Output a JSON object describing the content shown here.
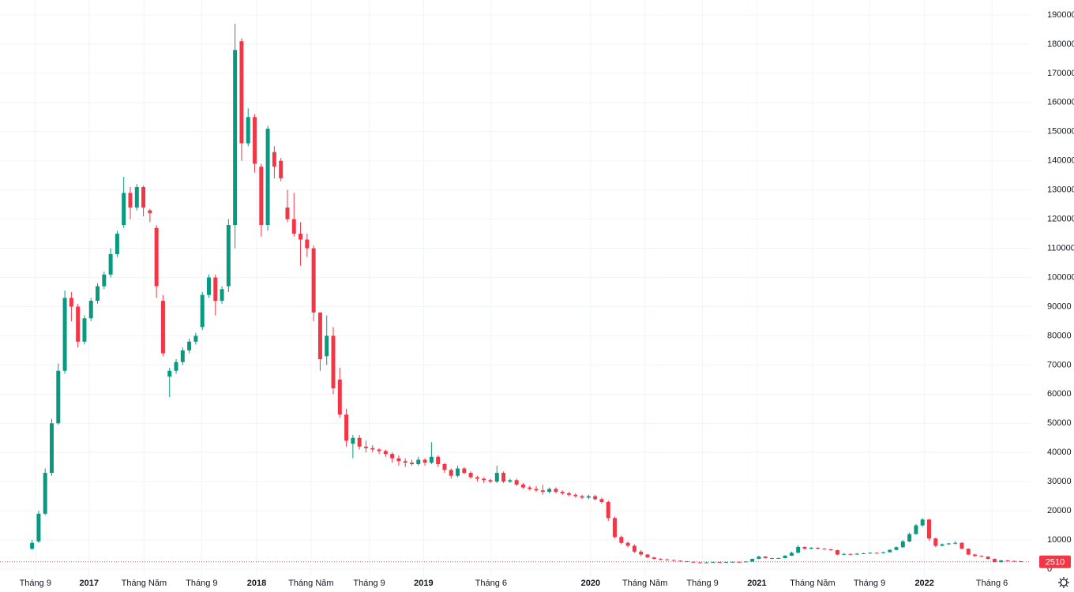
{
  "chart_data": {
    "type": "candlestick",
    "up_color": "#089981",
    "down_color": "#f23645",
    "grid": true,
    "ylim": [
      0,
      190000
    ],
    "yticks": [
      0,
      10000,
      20000,
      30000,
      40000,
      50000,
      60000,
      70000,
      80000,
      90000,
      100000,
      110000,
      120000,
      130000,
      140000,
      150000,
      160000,
      170000,
      180000,
      190000
    ],
    "xlim": [
      -4.9,
      152.5
    ],
    "xticks": [
      {
        "value": 0.5,
        "label": "Tháng 9"
      },
      {
        "value": 8.7,
        "label": "2017"
      },
      {
        "value": 17.1,
        "label": "Tháng Năm"
      },
      {
        "value": 25.9,
        "label": "Tháng 9"
      },
      {
        "value": 34.3,
        "label": "2018"
      },
      {
        "value": 42.6,
        "label": "Tháng Năm"
      },
      {
        "value": 51.5,
        "label": "Tháng 9"
      },
      {
        "value": 59.8,
        "label": "2019"
      },
      {
        "value": 70.1,
        "label": "Tháng 6"
      },
      {
        "value": 85.3,
        "label": "2020"
      },
      {
        "value": 93.6,
        "label": "Tháng Năm"
      },
      {
        "value": 102.4,
        "label": "Tháng 9"
      },
      {
        "value": 110.7,
        "label": "2021"
      },
      {
        "value": 119.2,
        "label": "Tháng Năm"
      },
      {
        "value": 127.9,
        "label": "Tháng 9"
      },
      {
        "value": 136.3,
        "label": "2022"
      },
      {
        "value": 146.6,
        "label": "Tháng 6"
      }
    ],
    "candles": [
      [
        7000,
        10000,
        6500,
        9000
      ],
      [
        9500,
        20000,
        9000,
        19000
      ],
      [
        19000,
        34500,
        18500,
        33000
      ],
      [
        33000,
        51500,
        32000,
        50000
      ],
      [
        50000,
        70500,
        49500,
        68000
      ],
      [
        68000,
        95500,
        67000,
        93000
      ],
      [
        93000,
        95000,
        85000,
        90000
      ],
      [
        90000,
        91000,
        76000,
        78000
      ],
      [
        78000,
        87000,
        77000,
        86000
      ],
      [
        86000,
        93000,
        85000,
        92000
      ],
      [
        92000,
        98000,
        91000,
        97000
      ],
      [
        97000,
        102000,
        96000,
        101000
      ],
      [
        101000,
        110000,
        100000,
        108000
      ],
      [
        108000,
        116000,
        107000,
        115000
      ],
      [
        118000,
        134500,
        117000,
        129000
      ],
      [
        129000,
        131000,
        120000,
        124000
      ],
      [
        124000,
        132000,
        123000,
        131000
      ],
      [
        131000,
        131500,
        121000,
        124000
      ],
      [
        123000,
        123500,
        119000,
        122000
      ],
      [
        117000,
        118000,
        93000,
        97000
      ],
      [
        92000,
        94000,
        73000,
        74000
      ],
      [
        66000,
        69000,
        59000,
        68000
      ],
      [
        68000,
        72000,
        67000,
        71000
      ],
      [
        71000,
        76000,
        70000,
        75000
      ],
      [
        75000,
        79000,
        74000,
        78000
      ],
      [
        78000,
        81000,
        77000,
        80000
      ],
      [
        83000,
        95000,
        82000,
        94000
      ],
      [
        94000,
        101000,
        93000,
        100000
      ],
      [
        100000,
        101000,
        87000,
        92000
      ],
      [
        92000,
        97000,
        91000,
        96000
      ],
      [
        97000,
        120000,
        95000,
        118000
      ],
      [
        118000,
        187000,
        110000,
        178000
      ],
      [
        181000,
        182000,
        140000,
        146000
      ],
      [
        146000,
        158000,
        145000,
        155000
      ],
      [
        155000,
        156000,
        136000,
        139000
      ],
      [
        138000,
        139000,
        114000,
        118000
      ],
      [
        118000,
        152000,
        116000,
        151000
      ],
      [
        143000,
        145000,
        134000,
        138000
      ],
      [
        140000,
        141000,
        133000,
        134000
      ],
      [
        124000,
        130000,
        119000,
        120000
      ],
      [
        120000,
        129000,
        114000,
        115000
      ],
      [
        115000,
        119000,
        104000,
        113000
      ],
      [
        113000,
        115000,
        107000,
        110000
      ],
      [
        110000,
        111000,
        85000,
        88000
      ],
      [
        88000,
        88000,
        68000,
        72000
      ],
      [
        73000,
        87000,
        70000,
        80000
      ],
      [
        80000,
        83000,
        60000,
        62000
      ],
      [
        65000,
        69000,
        52000,
        53000
      ],
      [
        53000,
        55000,
        42000,
        44000
      ],
      [
        43000,
        46000,
        38000,
        45000
      ],
      [
        45000,
        46000,
        41000,
        42000
      ],
      [
        42000,
        44000,
        40000,
        41500
      ],
      [
        41500,
        42500,
        40000,
        41000
      ],
      [
        41000,
        41500,
        39500,
        40500
      ],
      [
        40500,
        41000,
        38500,
        39500
      ],
      [
        39500,
        40000,
        36500,
        38000
      ],
      [
        38000,
        39000,
        35500,
        37000
      ],
      [
        37000,
        38000,
        35000,
        36500
      ],
      [
        36500,
        37500,
        35500,
        36000
      ],
      [
        36000,
        38500,
        35500,
        37500
      ],
      [
        37500,
        38000,
        35500,
        36500
      ],
      [
        36500,
        43500,
        36000,
        38500
      ],
      [
        38500,
        39000,
        35000,
        36000
      ],
      [
        36000,
        36500,
        33000,
        34000
      ],
      [
        34000,
        34500,
        31000,
        32000
      ],
      [
        32000,
        35500,
        31500,
        34500
      ],
      [
        34500,
        35000,
        32500,
        33000
      ],
      [
        33000,
        33500,
        31000,
        31500
      ],
      [
        31500,
        32000,
        30000,
        31000
      ],
      [
        31000,
        31500,
        29500,
        30500
      ],
      [
        30500,
        31000,
        29500,
        30000
      ],
      [
        30000,
        35500,
        29500,
        33000
      ],
      [
        33000,
        33500,
        29500,
        30000
      ],
      [
        30000,
        31000,
        29500,
        30500
      ],
      [
        30500,
        31000,
        28500,
        29000
      ],
      [
        29000,
        29500,
        27500,
        28000
      ],
      [
        28000,
        28500,
        27000,
        27500
      ],
      [
        27500,
        28500,
        26500,
        27000
      ],
      [
        27000,
        29000,
        25500,
        26500
      ],
      [
        26500,
        28000,
        26000,
        27500
      ],
      [
        27500,
        28000,
        26000,
        26500
      ],
      [
        26500,
        27000,
        25500,
        26000
      ],
      [
        26000,
        26500,
        25000,
        25500
      ],
      [
        25500,
        26000,
        24500,
        25000
      ],
      [
        25000,
        25500,
        24000,
        24500
      ],
      [
        24500,
        25500,
        24000,
        25000
      ],
      [
        25000,
        25500,
        23500,
        24000
      ],
      [
        24000,
        24500,
        22500,
        23000
      ],
      [
        23000,
        23500,
        16500,
        17500
      ],
      [
        17500,
        18000,
        10500,
        11000
      ],
      [
        11000,
        11500,
        8500,
        9000
      ],
      [
        9000,
        9500,
        7500,
        8000
      ],
      [
        8000,
        8500,
        5500,
        6000
      ],
      [
        6000,
        6500,
        4500,
        5000
      ],
      [
        5000,
        5200,
        3800,
        4000
      ],
      [
        4000,
        4200,
        3300,
        3500
      ],
      [
        3500,
        3700,
        3100,
        3300
      ],
      [
        3300,
        3600,
        3000,
        3100
      ],
      [
        3100,
        3300,
        2800,
        2900
      ],
      [
        2900,
        3000,
        2600,
        2700
      ],
      [
        2700,
        2800,
        2400,
        2500
      ],
      [
        2500,
        2600,
        2200,
        2300
      ],
      [
        2300,
        2400,
        2100,
        2200
      ],
      [
        2200,
        2400,
        2100,
        2300
      ],
      [
        2300,
        2500,
        2200,
        2400
      ],
      [
        2400,
        2500,
        2200,
        2300
      ],
      [
        2300,
        2500,
        2200,
        2400
      ],
      [
        2400,
        2600,
        2300,
        2500
      ],
      [
        2500,
        2600,
        2300,
        2400
      ],
      [
        2400,
        2700,
        2300,
        2600
      ],
      [
        2600,
        3600,
        2500,
        3500
      ],
      [
        3500,
        4600,
        3400,
        4300
      ],
      [
        4300,
        4400,
        3600,
        3800
      ],
      [
        3800,
        3900,
        3400,
        3600
      ],
      [
        3600,
        4000,
        3500,
        3800
      ],
      [
        3800,
        4800,
        3700,
        4600
      ],
      [
        4600,
        6000,
        4500,
        5600
      ],
      [
        5600,
        8200,
        5500,
        7600
      ],
      [
        7600,
        7800,
        6600,
        7000
      ],
      [
        7000,
        7600,
        6800,
        7300
      ],
      [
        7300,
        7500,
        6800,
        7000
      ],
      [
        7000,
        7200,
        6600,
        6800
      ],
      [
        6800,
        7000,
        6300,
        6500
      ],
      [
        6500,
        6600,
        4800,
        5000
      ],
      [
        5000,
        5500,
        4900,
        5200
      ],
      [
        5200,
        5300,
        4800,
        5000
      ],
      [
        5000,
        5500,
        4900,
        5300
      ],
      [
        5300,
        5600,
        5200,
        5400
      ],
      [
        5400,
        5800,
        5300,
        5600
      ],
      [
        5600,
        5700,
        5300,
        5500
      ],
      [
        5500,
        6000,
        5400,
        5800
      ],
      [
        5800,
        6800,
        5700,
        6600
      ],
      [
        6600,
        7800,
        6400,
        7500
      ],
      [
        7500,
        10000,
        7300,
        9500
      ],
      [
        9500,
        12500,
        9200,
        12000
      ],
      [
        12000,
        15500,
        11800,
        15000
      ],
      [
        15000,
        17500,
        14500,
        17000
      ],
      [
        17000,
        17200,
        9800,
        10500
      ],
      [
        10500,
        10800,
        7600,
        8000
      ],
      [
        8000,
        8800,
        7800,
        8500
      ],
      [
        8500,
        9000,
        8300,
        8800
      ],
      [
        8800,
        9600,
        8500,
        9000
      ],
      [
        9000,
        9200,
        6800,
        7000
      ],
      [
        7000,
        7100,
        4800,
        5000
      ],
      [
        5000,
        5200,
        4300,
        4500
      ],
      [
        4500,
        4700,
        4100,
        4300
      ],
      [
        4300,
        4400,
        3300,
        3500
      ],
      [
        3500,
        3600,
        2300,
        2400
      ],
      [
        2400,
        3100,
        2300,
        3000
      ],
      [
        3000,
        3200,
        2700,
        2800
      ],
      [
        2800,
        2900,
        2600,
        2700
      ],
      [
        2700,
        2800,
        2500,
        2510
      ]
    ]
  }
}
